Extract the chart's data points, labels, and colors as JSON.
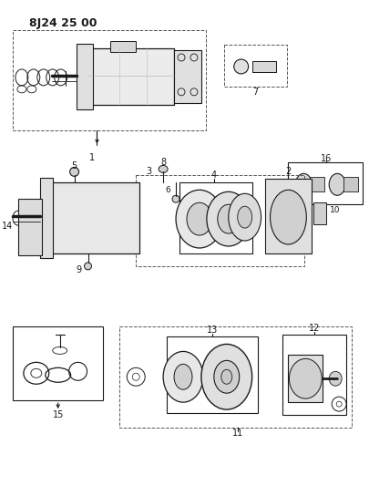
{
  "title": "8J24 25 00",
  "bg_color": "#ffffff",
  "line_color": "#1a1a1a",
  "fig_width": 4.05,
  "fig_height": 5.33,
  "dpi": 100
}
